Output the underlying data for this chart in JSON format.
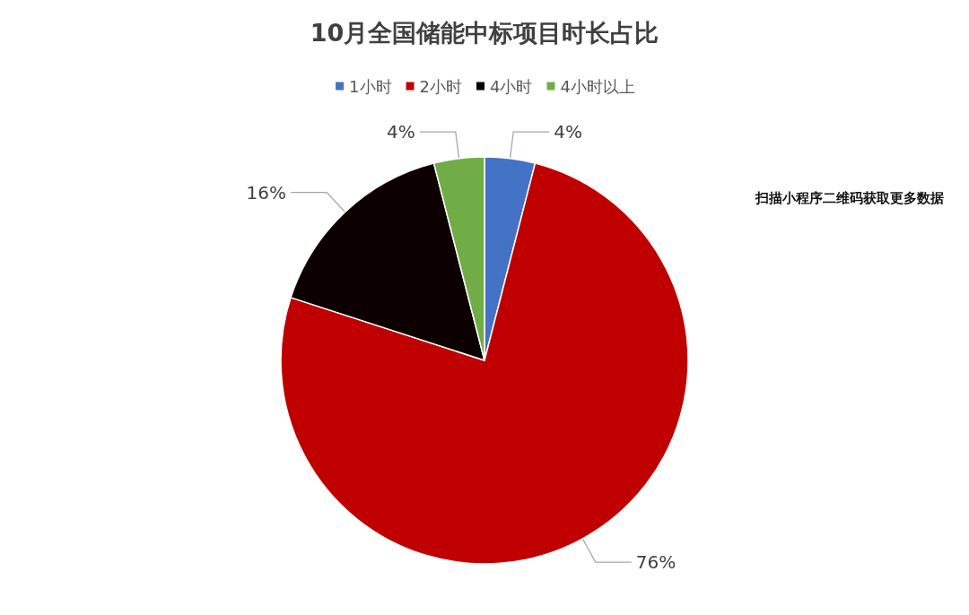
{
  "chart_data": {
    "type": "pie",
    "title": "10月全国储能中标项目时长占比",
    "categories": [
      "1小时",
      "2小时",
      "4小时",
      "4小时以上"
    ],
    "values": [
      4,
      76,
      16,
      4
    ],
    "colors": [
      "#4472c4",
      "#c00000",
      "#0d0000",
      "#70ad47"
    ],
    "value_labels": [
      "4%",
      "76%",
      "16%",
      "4%"
    ],
    "legend": "top",
    "annotations": [
      "扫描小程序二维码获取更多数据"
    ]
  }
}
